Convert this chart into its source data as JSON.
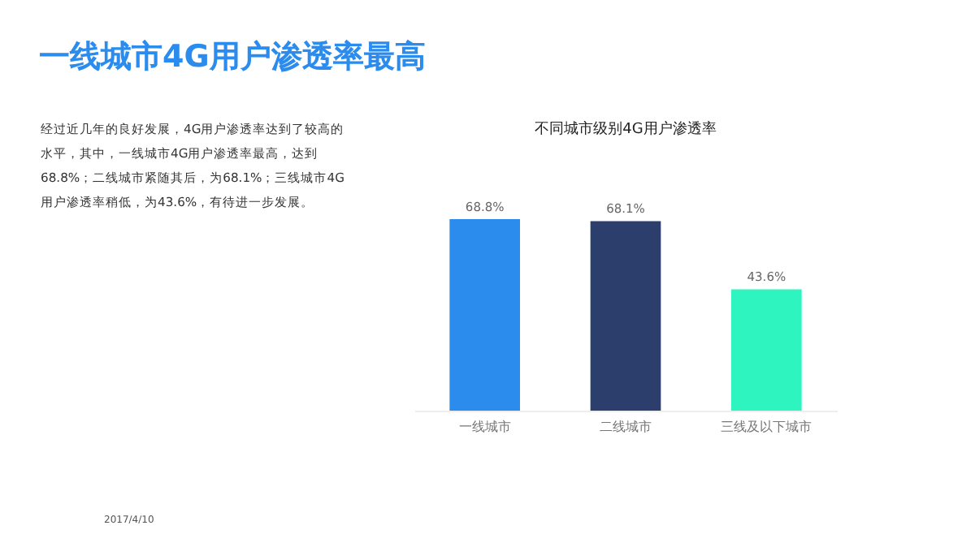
{
  "chart_data": {
    "type": "bar",
    "title": "一线城市4G用户渗透率最高",
    "subtitle": "不同城市级别4G用户渗透率",
    "categories": [
      "一线城市",
      "二线城市",
      "三线及以下城市"
    ],
    "values": [
      68.8,
      68.1,
      43.6
    ],
    "colors": [
      "#2b8cee",
      "#2c3e6b",
      "#2ef5c0"
    ],
    "value_labels": [
      "68.8%",
      "68.1%",
      "43.6%"
    ],
    "annotations": [
      "经过近几年的良好发展，4G用户渗透率达到了较高的水平，其中，一线城市4G用户渗透率最高，达到68.8%；二线城市紧随其后，为68.1%；三线城市4G用户渗透率稍低，为43.6%，有待进一步发展。",
      "2017/4/10"
    ]
  }
}
